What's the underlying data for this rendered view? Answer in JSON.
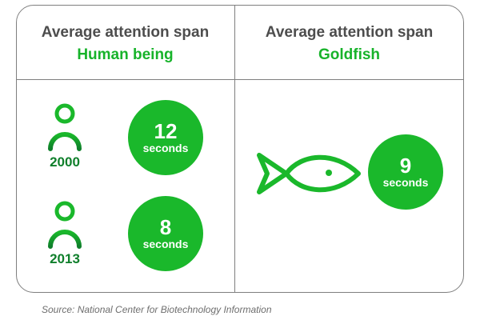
{
  "left_panel": {
    "heading": "Average attention span",
    "subject": "Human being",
    "rows": [
      {
        "year": "2000",
        "value": "12",
        "unit": "seconds"
      },
      {
        "year": "2013",
        "value": "8",
        "unit": "seconds"
      }
    ]
  },
  "right_panel": {
    "heading": "Average attention span",
    "subject": "Goldfish",
    "value": "9",
    "unit": "seconds"
  },
  "source": "Source: National Center for Biotechnology Information",
  "colors": {
    "green": "#1ab82b",
    "dark_green": "#0f7f2b",
    "heading_gray": "#4d4d4d",
    "border": "#7f7f7f"
  },
  "icons": {
    "person": "person-icon",
    "fish": "fish-icon"
  }
}
